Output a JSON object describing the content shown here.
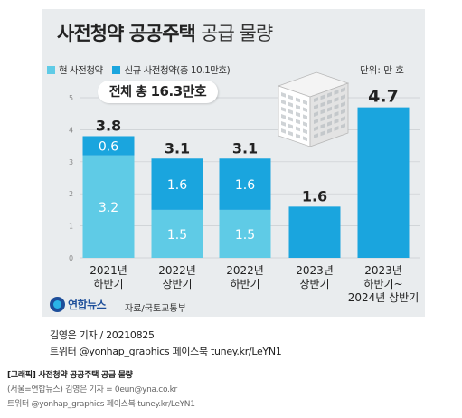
{
  "chart_data": {
    "type": "bar",
    "stacked": true,
    "title": "사전청약 공공주택",
    "subtitle": "공급 물량",
    "unit": "단위: 만 호",
    "total_label": "전체 총",
    "total_value": "16.3만호",
    "categories": [
      "2021년 하반기",
      "2022년 상반기",
      "2022년 하반기",
      "2023년 상반기",
      "2023년 하반기~ 2024년 상반기"
    ],
    "category_lines": [
      [
        "2021년",
        "하반기"
      ],
      [
        "2022년",
        "상반기"
      ],
      [
        "2022년",
        "하반기"
      ],
      [
        "2023년",
        "상반기"
      ],
      [
        "2023년",
        "하반기~",
        "2024년 상반기"
      ]
    ],
    "series": [
      {
        "name": "현 사전청약",
        "color": "#5fcbe6",
        "values": [
          3.2,
          1.5,
          1.5,
          0,
          0
        ]
      },
      {
        "name": "신규 사전청약(총 10.1만호)",
        "color": "#1aa5de",
        "values": [
          0.6,
          1.6,
          1.6,
          1.6,
          4.7
        ]
      }
    ],
    "totals": [
      3.8,
      3.1,
      3.1,
      1.6,
      4.7
    ],
    "ylim": [
      0,
      5
    ],
    "yticks": [
      0,
      1,
      2,
      3,
      4,
      5
    ]
  },
  "footer": {
    "logo": "연합뉴스",
    "source": "자료/국토교통부",
    "credit_line1": "김영은 기자 / 20210825",
    "credit_line2": "트위터 @yonhap_graphics  페이스북 tuney.kr/LeYN1"
  },
  "caption": {
    "line1": "[그래픽] 사전청약 공공주택 공급 물량",
    "line2": "(서울=연합뉴스) 김영은 기자 = 0eun@yna.co.kr",
    "line3": "트위터 @yonhap_graphics 페이스북 tuney.kr/LeYN1"
  }
}
